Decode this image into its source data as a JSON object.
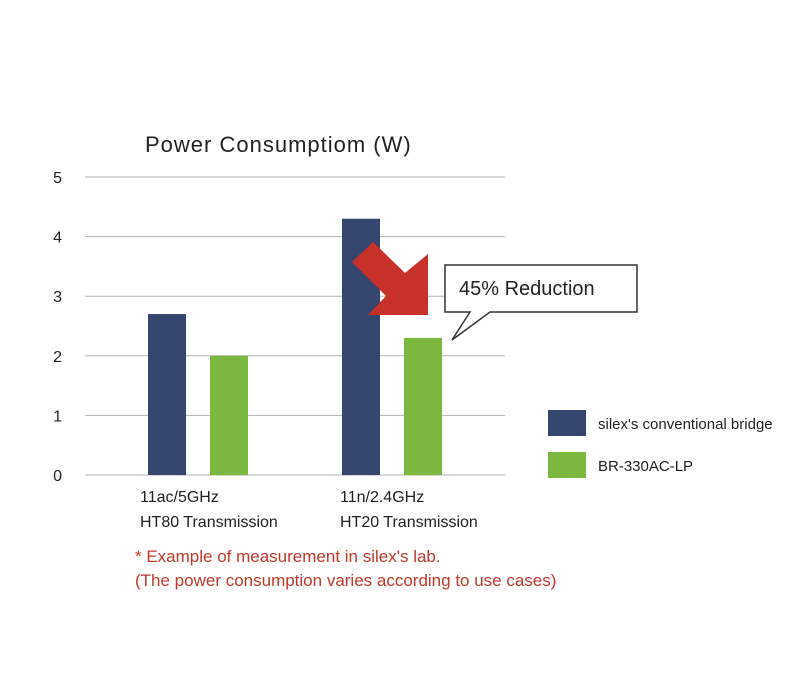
{
  "chart_data": {
    "type": "bar",
    "title": "Power Consumptiom (W)",
    "categories": [
      [
        "11ac/5GHz",
        "HT80 Transmission"
      ],
      [
        "11n/2.4GHz",
        "HT20 Transmission"
      ]
    ],
    "series": [
      {
        "name": "silex's conventional bridge",
        "color": "#34456e",
        "values": [
          2.7,
          4.3
        ]
      },
      {
        "name": "BR-330AC-LP",
        "color": "#7cb83f",
        "values": [
          2.0,
          2.3
        ]
      }
    ],
    "ylim": [
      0,
      5
    ],
    "yticks": [
      0,
      1,
      2,
      3,
      4,
      5
    ],
    "grid": true,
    "legend_position": "right",
    "annotation": {
      "text": "45% Reduction",
      "arrow_color": "#c8302a"
    }
  },
  "note": {
    "line1": "* Example of measurement in silex's lab.",
    "line2": "(The power consumption varies according to use cases)",
    "color": "#c0392b"
  }
}
